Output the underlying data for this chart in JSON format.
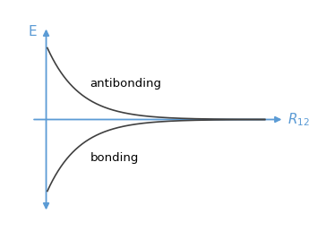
{
  "axis_color": "#5b9bd5",
  "curve_color": "#404040",
  "antibonding_label": "antibonding",
  "bonding_label": "bonding",
  "ylabel": "E",
  "r_label": "$R_{12}$",
  "x_start": 0.05,
  "x_end": 9.0,
  "amplitude": 1.0,
  "decay": 0.75,
  "label_fontsize": 9.5,
  "axis_label_fontsize": 11,
  "background_color": "#ffffff",
  "xlim": [
    -0.8,
    10.2
  ],
  "ylim": [
    -1.35,
    1.35
  ],
  "vaxis_x": 0.0,
  "vaxis_ymin": -1.25,
  "vaxis_ymax": 1.25,
  "haxis_xmin": -0.6,
  "haxis_xmax": 9.8
}
